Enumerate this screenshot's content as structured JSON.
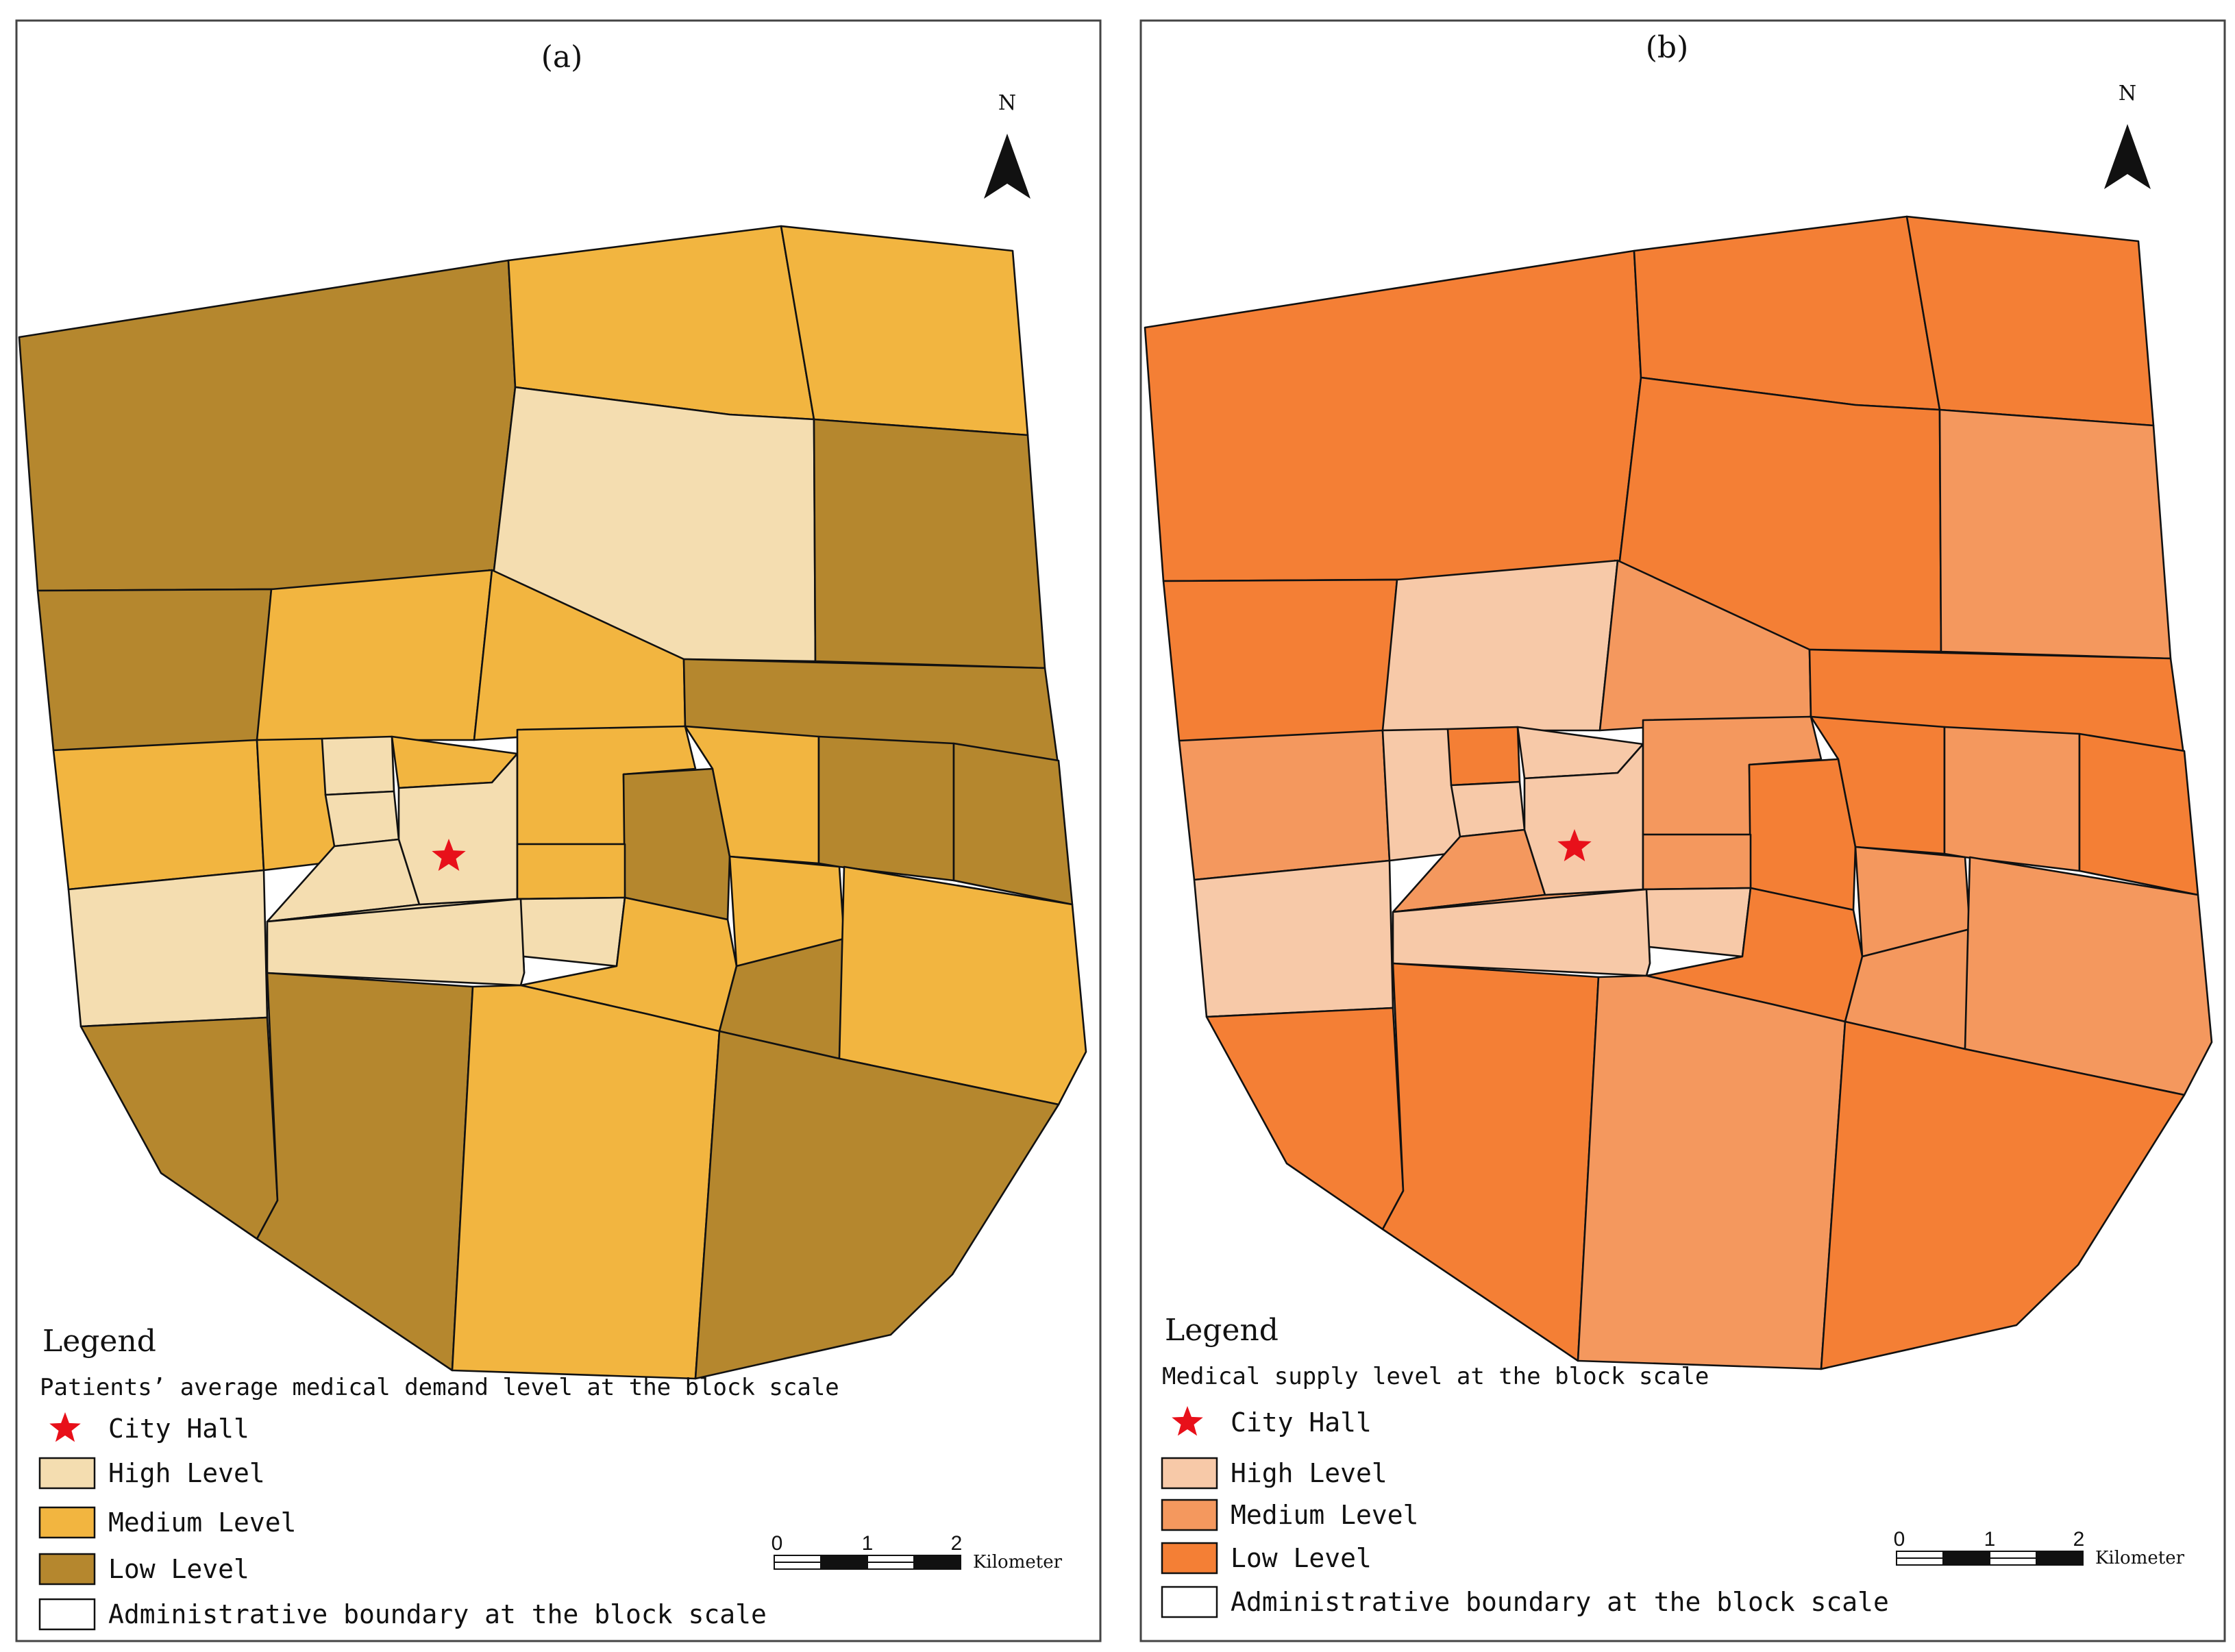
{
  "colors": {
    "a_high": "#F4DDB0",
    "a_medium": "#F2B540",
    "a_low": "#B5872E",
    "b_high": "#F7C9A8",
    "b_medium": "#F4985E",
    "b_low": "#F47F35",
    "star": "#E8101A",
    "boundary": "#111111"
  },
  "panels": [
    {
      "id": "a",
      "panel_label": "(a)",
      "north_label": "N",
      "legend": {
        "title": "Legend",
        "subtitle": "Patients’ average medical demand level at the block scale",
        "items": {
          "city_hall": "City Hall",
          "high": "High Level",
          "medium": "Medium Level",
          "low": "Low Level",
          "boundary": "Administrative boundary at the block scale"
        }
      },
      "scalebar": {
        "ticks": [
          "0",
          "1",
          "2"
        ],
        "unit": "Kilometer"
      }
    },
    {
      "id": "b",
      "panel_label": "(b)",
      "north_label": "N",
      "legend": {
        "title": "Legend",
        "subtitle": "Medical supply level at the block scale",
        "items": {
          "city_hall": "City Hall",
          "high": "High Level",
          "medium": "Medium Level",
          "low": "Low Level",
          "boundary": "Administrative boundary at the block scale"
        }
      },
      "scalebar": {
        "ticks": [
          "0",
          "1",
          "2"
        ],
        "unit": "Kilometer"
      }
    }
  ],
  "blocks": [
    {
      "id": "nw",
      "a": "low",
      "b": "low"
    },
    {
      "id": "n-center",
      "a": "medium",
      "b": "low"
    },
    {
      "id": "ne-top",
      "a": "medium",
      "b": "low"
    },
    {
      "id": "center-north",
      "a": "high",
      "b": "low"
    },
    {
      "id": "ne-east",
      "a": "low",
      "b": "medium"
    },
    {
      "id": "west-1",
      "a": "low",
      "b": "low"
    },
    {
      "id": "west-2",
      "a": "medium",
      "b": "high"
    },
    {
      "id": "center-west",
      "a": "medium",
      "b": "medium"
    },
    {
      "id": "east-strip",
      "a": "low",
      "b": "low"
    },
    {
      "id": "west-3",
      "a": "medium",
      "b": "medium"
    },
    {
      "id": "west-4",
      "a": "high",
      "b": "high"
    },
    {
      "id": "c-small-1",
      "a": "medium",
      "b": "high"
    },
    {
      "id": "c-small-2",
      "a": "high",
      "b": "low"
    },
    {
      "id": "c-small-3",
      "a": "medium",
      "b": "high"
    },
    {
      "id": "c-small-4",
      "a": "high",
      "b": "high"
    },
    {
      "id": "c-small-5",
      "a": "high",
      "b": "medium"
    },
    {
      "id": "c-small-6",
      "a": "high",
      "b": "medium"
    },
    {
      "id": "city-hall-block",
      "a": "high",
      "b": "high"
    },
    {
      "id": "c-east-1",
      "a": "medium",
      "b": "medium"
    },
    {
      "id": "c-east-2",
      "a": "low",
      "b": "low"
    },
    {
      "id": "c-east-3",
      "a": "medium",
      "b": "low"
    },
    {
      "id": "c-east-4",
      "a": "low",
      "b": "medium"
    },
    {
      "id": "c-east-5",
      "a": "low",
      "b": "low"
    },
    {
      "id": "south-center-1",
      "a": "medium",
      "b": "medium"
    },
    {
      "id": "south-center-2",
      "a": "high",
      "b": "high"
    },
    {
      "id": "south-center-3",
      "a": "high",
      "b": "high"
    },
    {
      "id": "south-center-4",
      "a": "medium",
      "b": "low"
    },
    {
      "id": "s-east-1",
      "a": "medium",
      "b": "medium"
    },
    {
      "id": "s-east-2",
      "a": "low",
      "b": "medium"
    },
    {
      "id": "s-east-3",
      "a": "medium",
      "b": "medium"
    },
    {
      "id": "sw-1",
      "a": "low",
      "b": "low"
    },
    {
      "id": "sw-2",
      "a": "low",
      "b": "low"
    },
    {
      "id": "south-1",
      "a": "medium",
      "b": "medium"
    },
    {
      "id": "south-2",
      "a": "low",
      "b": "low"
    }
  ]
}
